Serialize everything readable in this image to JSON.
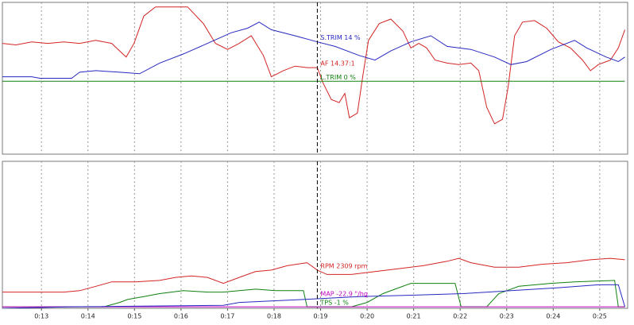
{
  "chart_data": [
    {
      "type": "line",
      "xlim": [
        12.16,
        25.6
      ],
      "ylim": [
        0,
        100
      ],
      "cursor_x": 18.93,
      "series": [
        {
          "name": "AF 14.37:1",
          "color": "#d42424",
          "x": [
            12.16,
            12.45,
            12.79,
            13.14,
            13.48,
            13.82,
            14.17,
            14.51,
            14.68,
            14.82,
            14.99,
            15.2,
            15.45,
            15.71,
            16.14,
            16.48,
            16.74,
            17.0,
            17.25,
            17.51,
            17.77,
            17.94,
            18.2,
            18.45,
            18.71,
            18.93,
            19.05,
            19.23,
            19.4,
            19.52,
            19.62,
            19.79,
            19.91,
            20.03,
            20.26,
            20.51,
            20.77,
            20.94,
            21.11,
            21.28,
            21.46,
            21.72,
            21.97,
            22.23,
            22.4,
            22.57,
            22.74,
            22.91,
            23.03,
            23.17,
            23.34,
            23.6,
            23.86,
            24.11,
            24.37,
            24.63,
            24.8,
            24.97,
            25.23,
            25.4,
            25.54
          ],
          "values": [
            73,
            72,
            74,
            73,
            74,
            73,
            75,
            73,
            68,
            64,
            73,
            91,
            97,
            97,
            97,
            86,
            73,
            69,
            73,
            78,
            65,
            51,
            55,
            58,
            57,
            57,
            47,
            36,
            34,
            40,
            24,
            27,
            52,
            75,
            86,
            89,
            81,
            70,
            73,
            70,
            62,
            60,
            59,
            60,
            55,
            31,
            20,
            23,
            44,
            78,
            87,
            88,
            83,
            74,
            70,
            62,
            55,
            59,
            62,
            70,
            82
          ]
        },
        {
          "name": "S.TRIM 14 %",
          "color": "#2828c0",
          "x": [
            12.16,
            12.79,
            12.97,
            13.65,
            13.82,
            14.17,
            14.68,
            15.11,
            15.54,
            16.05,
            16.57,
            17.08,
            17.43,
            17.68,
            17.94,
            18.45,
            18.93,
            19.31,
            19.83,
            20.17,
            20.51,
            20.94,
            21.37,
            21.72,
            22.23,
            22.74,
            23.09,
            23.43,
            23.95,
            24.46,
            24.72,
            25.14,
            25.4,
            25.54
          ],
          "values": [
            51,
            51,
            50,
            50,
            54,
            55,
            54,
            53,
            60,
            66,
            73,
            80,
            83,
            87,
            82,
            78,
            74,
            71,
            65,
            62,
            68,
            74,
            78,
            71,
            69,
            64,
            59,
            61,
            69,
            75,
            70,
            64,
            61,
            64
          ]
        },
        {
          "name": "L.TRIM 0 %",
          "color": "#108010",
          "x": [
            12.16,
            25.54
          ],
          "values": [
            48,
            48
          ]
        }
      ]
    },
    {
      "type": "line",
      "xlim": [
        12.16,
        25.6
      ],
      "ylim": [
        0,
        100
      ],
      "cursor_x": 18.93,
      "xticks": [
        {
          "value": 13,
          "label": "0:13"
        },
        {
          "value": 14,
          "label": "0:14"
        },
        {
          "value": 15,
          "label": "0:15"
        },
        {
          "value": 16,
          "label": "0:16"
        },
        {
          "value": 17,
          "label": "0:17"
        },
        {
          "value": 18,
          "label": "0:18"
        },
        {
          "value": 19,
          "label": "0:19"
        },
        {
          "value": 20,
          "label": "0:20"
        },
        {
          "value": 21,
          "label": "0:21"
        },
        {
          "value": 22,
          "label": "0:22"
        },
        {
          "value": 23,
          "label": "0:23"
        },
        {
          "value": 24,
          "label": "0:24"
        },
        {
          "value": 25,
          "label": "0:25"
        }
      ],
      "series": [
        {
          "name": "RPM 2309 rpm",
          "color": "#d42424",
          "x": [
            12.16,
            13.48,
            13.82,
            14.17,
            14.51,
            15.02,
            15.54,
            15.88,
            16.22,
            16.57,
            16.91,
            17.25,
            17.6,
            17.94,
            18.28,
            18.71,
            18.93,
            19.14,
            19.66,
            20.17,
            20.68,
            21.2,
            21.72,
            21.97,
            22.23,
            22.74,
            23.26,
            23.77,
            24.29,
            24.8,
            25.23,
            25.54
          ],
          "values": [
            11,
            11,
            12,
            15,
            18,
            18,
            19,
            21,
            22,
            21,
            17,
            21,
            25,
            26,
            29,
            31,
            26,
            23,
            23,
            25,
            27,
            29,
            32,
            34,
            31,
            28,
            28,
            30,
            31,
            33,
            34,
            33
          ]
        },
        {
          "name": "TPS -1 %",
          "color": "#108010",
          "x": [
            12.16,
            14.34,
            14.68,
            14.85,
            15.2,
            15.54,
            16.05,
            16.57,
            16.91,
            17.25,
            17.6,
            18.03,
            18.63,
            18.71,
            19.66,
            20.0,
            20.34,
            20.68,
            20.94,
            21.89,
            22.02,
            22.57,
            22.83,
            23.26,
            23.94,
            24.46,
            25.32,
            25.4,
            25.54
          ],
          "values": [
            1,
            1,
            4,
            6,
            8,
            10,
            12,
            11,
            11,
            12,
            13,
            12,
            12,
            1,
            1,
            4,
            10,
            14,
            17,
            17,
            1,
            1,
            10,
            15,
            17,
            18,
            19,
            1,
            1
          ]
        },
        {
          "name": "MAP -22.9 \"/hg",
          "color": "#c000c0",
          "x": [
            12.16,
            25.54
          ],
          "values": [
            1,
            1
          ]
        },
        {
          "color": "#2828c0",
          "x": [
            12.16,
            13.65,
            16.91,
            17.25,
            18.63,
            19.83,
            21.03,
            22.06,
            23.09,
            24.11,
            24.97,
            25.4,
            25.54
          ],
          "values": [
            0,
            1,
            2,
            4,
            6,
            8,
            9,
            10,
            12,
            14,
            16,
            16,
            1
          ]
        }
      ]
    }
  ]
}
